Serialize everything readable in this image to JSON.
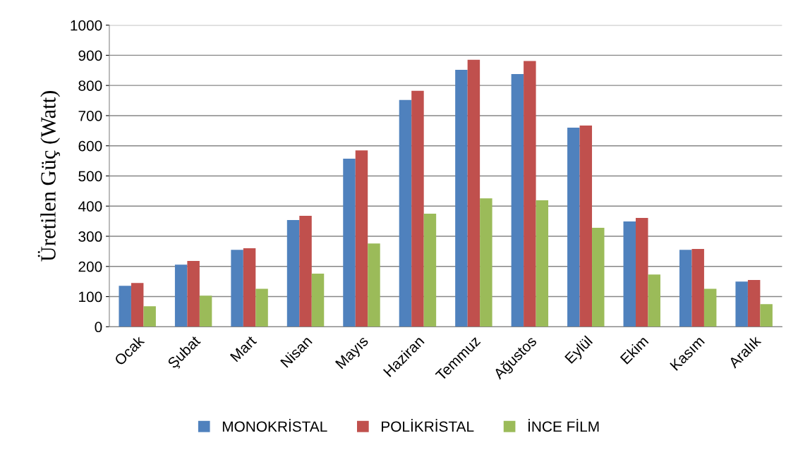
{
  "chart_data": {
    "type": "bar",
    "ylabel": "Üretilen Güç (Watt)",
    "categories": [
      "Ocak",
      "Şubat",
      "Mart",
      "Nisan",
      "Mayıs",
      "Haziran",
      "Temmuz",
      "Ağustos",
      "Eylül",
      "Ekim",
      "Kasım",
      "Aralık"
    ],
    "series": [
      {
        "name": "MONOKRİSTAL",
        "color": "#4f81bd",
        "values": [
          136,
          206,
          255,
          354,
          557,
          752,
          852,
          838,
          660,
          349,
          255,
          150
        ]
      },
      {
        "name": "POLİKRİSTAL",
        "color": "#c0504d",
        "values": [
          145,
          218,
          260,
          368,
          585,
          782,
          885,
          881,
          667,
          361,
          258,
          155
        ]
      },
      {
        "name": "İNCE FİLM",
        "color": "#9bbb59",
        "values": [
          68,
          103,
          126,
          176,
          276,
          375,
          426,
          419,
          328,
          173,
          126,
          75
        ]
      }
    ],
    "ylim": [
      0,
      1000
    ],
    "yticks": [
      0,
      100,
      200,
      300,
      400,
      500,
      600,
      700,
      800,
      900,
      1000
    ],
    "grid": "y",
    "legend": "bottom"
  }
}
